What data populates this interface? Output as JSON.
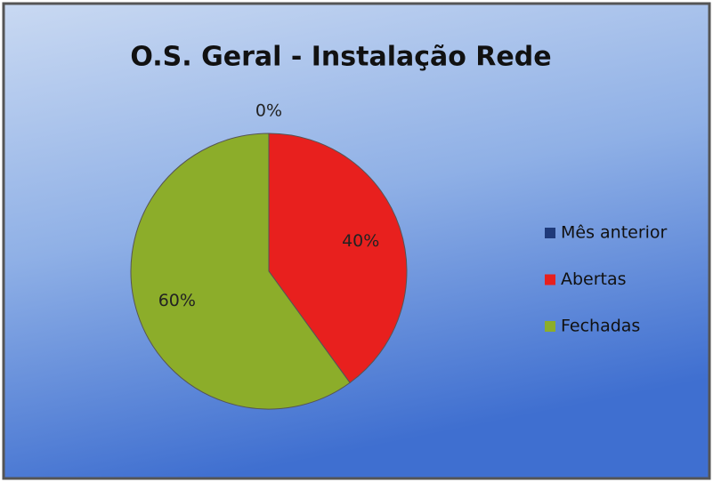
{
  "chart_data": {
    "type": "pie",
    "title": "O.S. Geral - Instalação Rede",
    "categories": [
      "Mês anterior",
      "Abertas",
      "Fechadas"
    ],
    "values": [
      0,
      40,
      60
    ],
    "value_labels": [
      "0%",
      "40%",
      "60%"
    ],
    "colors": [
      "#1f3a7a",
      "#e8201e",
      "#8cad2a"
    ]
  }
}
